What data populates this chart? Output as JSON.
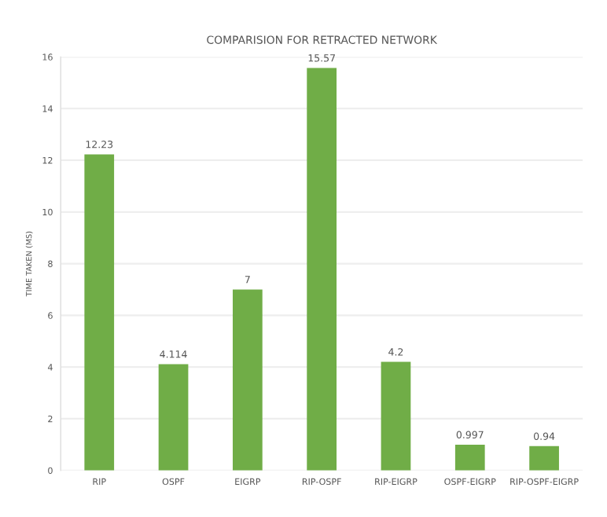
{
  "chart_data": {
    "type": "bar",
    "title": "COMPARISION FOR RETRACTED NETWORK",
    "ylabel": "TIME TAKEN (MS)",
    "categories": [
      "RIP",
      "OSPF",
      "EIGRP",
      "RIP-OSPF",
      "RIP-EIGRP",
      "OSPF-EIGRP",
      "RIP-OSPF-EIGRP"
    ],
    "values": [
      12.23,
      4.114,
      7,
      15.57,
      4.2,
      0.997,
      0.94
    ],
    "color": "#70ad47",
    "ylim": [
      0,
      16
    ],
    "yticks": [
      0,
      2,
      4,
      6,
      8,
      10,
      12,
      14,
      16
    ],
    "grid": "y",
    "data_labels": true
  }
}
